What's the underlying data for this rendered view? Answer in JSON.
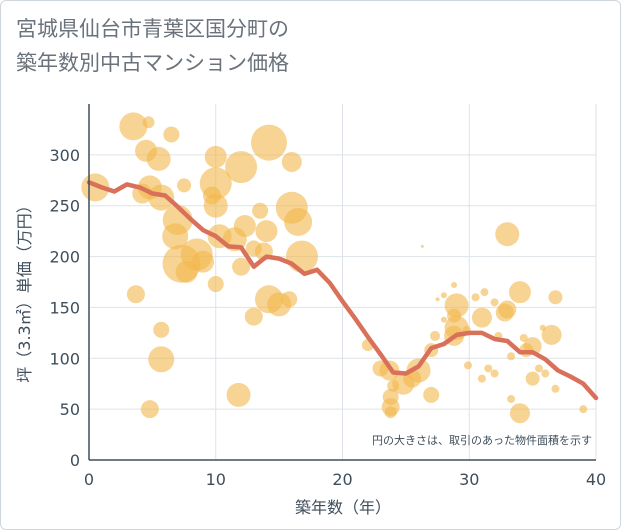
{
  "title": "宮城県仙台市青葉区国分町の\n築年数別中古マンション価格",
  "note": "円の大きさは、取引のあった物件面積を示す",
  "colors": {
    "bubble": "#f2b84b",
    "line": "#d9705a",
    "grid": "#dde3e8",
    "axis": "#3f4e5c",
    "title": "#6a727b"
  },
  "chart_data": {
    "type": "scatter",
    "title": "宮城県仙台市青葉区国分町の築年数別中古マンション価格",
    "xlabel": "築年数（年）",
    "ylabel": "坪（3.3㎡）単価（万円）",
    "xlim": [
      0,
      40
    ],
    "ylim": [
      0,
      350
    ],
    "xticks": [
      0,
      10,
      20,
      30,
      40
    ],
    "yticks": [
      0,
      50,
      100,
      150,
      200,
      250,
      300
    ],
    "grid": true,
    "legend": "none",
    "series": [
      {
        "type": "bubble",
        "points": [
          {
            "x": 0.5,
            "y": 268,
            "r": 14
          },
          {
            "x": 3.5,
            "y": 328,
            "r": 14
          },
          {
            "x": 4.7,
            "y": 332,
            "r": 6
          },
          {
            "x": 4.5,
            "y": 304,
            "r": 11
          },
          {
            "x": 5.5,
            "y": 296,
            "r": 12
          },
          {
            "x": 4.2,
            "y": 262,
            "r": 10
          },
          {
            "x": 4.8,
            "y": 268,
            "r": 12
          },
          {
            "x": 6.5,
            "y": 320,
            "r": 8
          },
          {
            "x": 5.7,
            "y": 258,
            "r": 13
          },
          {
            "x": 7.5,
            "y": 270,
            "r": 7
          },
          {
            "x": 7.0,
            "y": 236,
            "r": 15
          },
          {
            "x": 6.8,
            "y": 220,
            "r": 13
          },
          {
            "x": 7.3,
            "y": 193,
            "r": 19
          },
          {
            "x": 7.7,
            "y": 185,
            "r": 11
          },
          {
            "x": 8.5,
            "y": 202,
            "r": 16
          },
          {
            "x": 9.0,
            "y": 195,
            "r": 11
          },
          {
            "x": 9.7,
            "y": 260,
            "r": 9
          },
          {
            "x": 10.0,
            "y": 298,
            "r": 11
          },
          {
            "x": 10.0,
            "y": 272,
            "r": 16
          },
          {
            "x": 10.0,
            "y": 250,
            "r": 12
          },
          {
            "x": 10.3,
            "y": 220,
            "r": 12
          },
          {
            "x": 10.0,
            "y": 173,
            "r": 8
          },
          {
            "x": 11.5,
            "y": 217,
            "r": 12
          },
          {
            "x": 12.0,
            "y": 288,
            "r": 16
          },
          {
            "x": 12.3,
            "y": 230,
            "r": 11
          },
          {
            "x": 12.0,
            "y": 190,
            "r": 9
          },
          {
            "x": 13.0,
            "y": 208,
            "r": 8
          },
          {
            "x": 13.5,
            "y": 245,
            "r": 8
          },
          {
            "x": 14.0,
            "y": 225,
            "r": 11
          },
          {
            "x": 13.8,
            "y": 205,
            "r": 9
          },
          {
            "x": 14.2,
            "y": 312,
            "r": 18
          },
          {
            "x": 16.0,
            "y": 293,
            "r": 10
          },
          {
            "x": 16.0,
            "y": 248,
            "r": 16
          },
          {
            "x": 16.5,
            "y": 234,
            "r": 14
          },
          {
            "x": 16.8,
            "y": 200,
            "r": 16
          },
          {
            "x": 14.2,
            "y": 158,
            "r": 14
          },
          {
            "x": 15.0,
            "y": 153,
            "r": 12
          },
          {
            "x": 15.8,
            "y": 158,
            "r": 8
          },
          {
            "x": 13.0,
            "y": 141,
            "r": 9
          },
          {
            "x": 3.7,
            "y": 163,
            "r": 9
          },
          {
            "x": 5.7,
            "y": 128,
            "r": 8
          },
          {
            "x": 5.7,
            "y": 99,
            "r": 13
          },
          {
            "x": 4.8,
            "y": 50,
            "r": 9
          },
          {
            "x": 11.8,
            "y": 64,
            "r": 12
          },
          {
            "x": 22.0,
            "y": 113,
            "r": 6
          },
          {
            "x": 23.0,
            "y": 90,
            "r": 8
          },
          {
            "x": 23.7,
            "y": 88,
            "r": 10
          },
          {
            "x": 23.8,
            "y": 62,
            "r": 8
          },
          {
            "x": 23.8,
            "y": 52,
            "r": 9
          },
          {
            "x": 23.8,
            "y": 47,
            "r": 6
          },
          {
            "x": 24.8,
            "y": 75,
            "r": 11
          },
          {
            "x": 25.5,
            "y": 80,
            "r": 9
          },
          {
            "x": 26.0,
            "y": 88,
            "r": 12
          },
          {
            "x": 26.3,
            "y": 210,
            "r": 1.5
          },
          {
            "x": 27.0,
            "y": 108,
            "r": 7
          },
          {
            "x": 27.0,
            "y": 64,
            "r": 8
          },
          {
            "x": 27.3,
            "y": 122,
            "r": 5
          },
          {
            "x": 27.5,
            "y": 158,
            "r": 2
          },
          {
            "x": 28.0,
            "y": 138,
            "r": 3
          },
          {
            "x": 28.0,
            "y": 162,
            "r": 3
          },
          {
            "x": 28.8,
            "y": 172,
            "r": 3
          },
          {
            "x": 28.8,
            "y": 142,
            "r": 7
          },
          {
            "x": 29.0,
            "y": 152,
            "r": 12
          },
          {
            "x": 29.0,
            "y": 130,
            "r": 12
          },
          {
            "x": 28.8,
            "y": 122,
            "r": 10
          },
          {
            "x": 29.8,
            "y": 128,
            "r": 4
          },
          {
            "x": 29.9,
            "y": 93,
            "r": 4
          },
          {
            "x": 30.5,
            "y": 160,
            "r": 4
          },
          {
            "x": 31.0,
            "y": 140,
            "r": 10
          },
          {
            "x": 31.2,
            "y": 165,
            "r": 4
          },
          {
            "x": 31.5,
            "y": 90,
            "r": 4
          },
          {
            "x": 32.0,
            "y": 155,
            "r": 4
          },
          {
            "x": 32.0,
            "y": 85,
            "r": 4
          },
          {
            "x": 31.0,
            "y": 80,
            "r": 4
          },
          {
            "x": 32.3,
            "y": 122,
            "r": 4
          },
          {
            "x": 32.8,
            "y": 145,
            "r": 9
          },
          {
            "x": 33.0,
            "y": 148,
            "r": 9
          },
          {
            "x": 33.0,
            "y": 222,
            "r": 12
          },
          {
            "x": 33.3,
            "y": 102,
            "r": 4
          },
          {
            "x": 33.3,
            "y": 60,
            "r": 4
          },
          {
            "x": 34.0,
            "y": 165,
            "r": 11
          },
          {
            "x": 34.0,
            "y": 46,
            "r": 10
          },
          {
            "x": 34.5,
            "y": 108,
            "r": 7
          },
          {
            "x": 34.3,
            "y": 120,
            "r": 4
          },
          {
            "x": 35.0,
            "y": 112,
            "r": 9
          },
          {
            "x": 35.0,
            "y": 80,
            "r": 7
          },
          {
            "x": 35.5,
            "y": 90,
            "r": 4
          },
          {
            "x": 35.8,
            "y": 130,
            "r": 3
          },
          {
            "x": 36.0,
            "y": 85,
            "r": 4
          },
          {
            "x": 36.8,
            "y": 160,
            "r": 7
          },
          {
            "x": 36.5,
            "y": 123,
            "r": 10
          },
          {
            "x": 36.8,
            "y": 70,
            "r": 4
          },
          {
            "x": 39.0,
            "y": 50,
            "r": 4
          },
          {
            "x": 24.0,
            "y": 73,
            "r": 6
          }
        ]
      },
      {
        "type": "line",
        "x": [
          0,
          1,
          2,
          3,
          4,
          5,
          6,
          7,
          8,
          9,
          10,
          11,
          12,
          13,
          14,
          15,
          16,
          17,
          18,
          19,
          20,
          21,
          22,
          23,
          24,
          25,
          26,
          27,
          28,
          29,
          30,
          31,
          32,
          33,
          34,
          35,
          36,
          37,
          38,
          39,
          40
        ],
        "y": [
          273,
          268,
          264,
          271,
          268,
          262,
          260,
          249,
          237,
          226,
          220,
          210,
          209,
          190,
          200,
          198,
          193,
          183,
          187,
          174,
          156,
          139,
          121,
          104,
          86,
          85,
          92,
          110,
          114,
          123,
          125,
          125,
          119,
          117,
          106,
          106,
          99,
          88,
          82,
          75,
          61
        ]
      }
    ]
  }
}
